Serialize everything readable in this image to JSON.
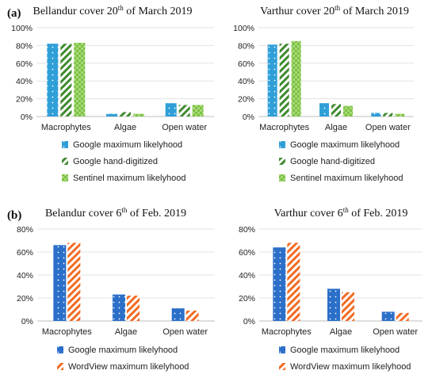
{
  "panel_labels": {
    "a": "(a)",
    "b": "(b)"
  },
  "colors": {
    "google_ml_a": "#2f9fd8",
    "google_hand": "#3f8a2f",
    "sentinel": "#7bc142",
    "google_ml_b": "#2b6fc9",
    "worldview": "#f26b22"
  },
  "chart_data": [
    {
      "type": "bar",
      "panel": "a",
      "title": {
        "pre": "Bellandur cover 20",
        "sup": "th",
        "post": " of March 2019"
      },
      "categories": [
        "Macrophytes",
        "Algae",
        "Open water"
      ],
      "ylim": [
        0,
        100
      ],
      "yticks": [
        "0%",
        "20%",
        "40%",
        "60%",
        "80%",
        "100%"
      ],
      "series": [
        {
          "name": "Google maximum likelyhood",
          "values": [
            82,
            3,
            15
          ],
          "pattern": "dots",
          "color_key": "google_ml_a"
        },
        {
          "name": "Google hand-digitized",
          "values": [
            82,
            5,
            13
          ],
          "pattern": "stripes",
          "color_key": "google_hand"
        },
        {
          "name": "Sentinel maximum likelyhood",
          "values": [
            83,
            3,
            13
          ],
          "pattern": "checker",
          "color_key": "sentinel"
        }
      ],
      "legend": "bottom"
    },
    {
      "type": "bar",
      "panel": "a",
      "title": {
        "pre": "Varthur cover 20",
        "sup": "th",
        "post": " of March 2019"
      },
      "categories": [
        "Macrophytes",
        "Algae",
        "Open water"
      ],
      "ylim": [
        0,
        100
      ],
      "yticks": [
        "0%",
        "20%",
        "40%",
        "60%",
        "80%",
        "100%"
      ],
      "series": [
        {
          "name": "Google maximum likelyhood",
          "values": [
            81,
            15,
            4
          ],
          "pattern": "dots",
          "color_key": "google_ml_a"
        },
        {
          "name": "Google hand-digitized",
          "values": [
            82,
            14,
            4
          ],
          "pattern": "stripes",
          "color_key": "google_hand"
        },
        {
          "name": "Sentinel maximum likelyhood",
          "values": [
            85,
            12,
            3
          ],
          "pattern": "checker",
          "color_key": "sentinel"
        }
      ],
      "legend": "bottom"
    },
    {
      "type": "bar",
      "panel": "b",
      "title": {
        "pre": "Belandur cover 6",
        "sup": "th",
        "post": " of Feb. 2019"
      },
      "categories": [
        "Macrophytes",
        "Algae",
        "Open water"
      ],
      "ylim": [
        0,
        80
      ],
      "yticks": [
        "0%",
        "20%",
        "40%",
        "60%",
        "80%"
      ],
      "series": [
        {
          "name": "Google maximum likelyhood",
          "values": [
            66,
            23,
            11
          ],
          "pattern": "dots",
          "color_key": "google_ml_b"
        },
        {
          "name": "WordView maximum likelyhood",
          "values": [
            68,
            22,
            9
          ],
          "pattern": "stripes",
          "color_key": "worldview"
        }
      ],
      "legend": "bottom"
    },
    {
      "type": "bar",
      "panel": "b",
      "title": {
        "pre": "Varthur cover 6",
        "sup": "th",
        "post": " of Feb. 2019"
      },
      "categories": [
        "Macrophytes",
        "Algae",
        "Open water"
      ],
      "ylim": [
        0,
        80
      ],
      "yticks": [
        "0%",
        "20%",
        "40%",
        "60%",
        "80%"
      ],
      "series": [
        {
          "name": "Google maximum likelyhood",
          "values": [
            64,
            28,
            8
          ],
          "pattern": "dots",
          "color_key": "google_ml_b"
        },
        {
          "name": "WordView maximum likelyhood",
          "values": [
            68,
            25,
            7
          ],
          "pattern": "stripes",
          "color_key": "worldview"
        }
      ],
      "legend": "bottom"
    }
  ]
}
